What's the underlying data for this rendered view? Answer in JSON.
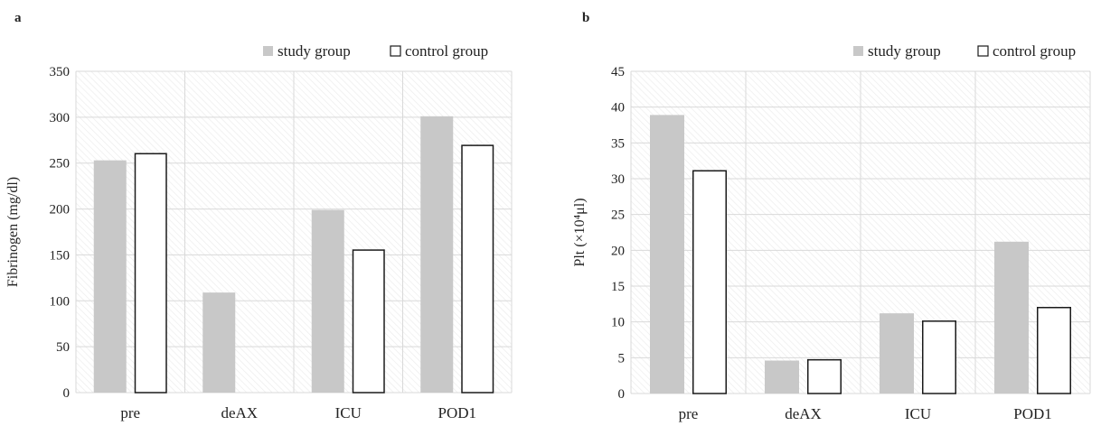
{
  "colors": {
    "study": "#c8c8c8",
    "control": "#ffffff",
    "control_stroke": "#1a1a1a",
    "grid": "#d9d9d9",
    "hatch": "#ececec"
  },
  "chart_data": [
    {
      "type": "bar",
      "panel_label": "a",
      "title": "",
      "xlabel": "",
      "ylabel": "Fibrinogen (mg/dl)",
      "categories": [
        "pre",
        "deAX",
        "ICU",
        "POD1"
      ],
      "series": [
        {
          "name": "study group",
          "values": [
            253,
            109,
            199,
            301
          ]
        },
        {
          "name": "control group",
          "values": [
            261,
            0,
            156,
            270
          ]
        }
      ],
      "ylim": [
        0,
        350
      ],
      "yticks": [
        0,
        50,
        100,
        150,
        200,
        250,
        300,
        350
      ],
      "grid": true,
      "legend": "top-right"
    },
    {
      "type": "bar",
      "panel_label": "b",
      "title": "",
      "xlabel": "",
      "ylabel": "Plt (×10⁴μl)",
      "categories": [
        "pre",
        "deAX",
        "ICU",
        "POD1"
      ],
      "series": [
        {
          "name": "study group",
          "values": [
            38.9,
            4.6,
            11.2,
            21.2
          ]
        },
        {
          "name": "control group",
          "values": [
            31.2,
            4.8,
            10.2,
            12.1
          ]
        }
      ],
      "ylim": [
        0,
        45
      ],
      "yticks": [
        0,
        5,
        10,
        15,
        20,
        25,
        30,
        35,
        40,
        45
      ],
      "grid": true,
      "legend": "top-right"
    }
  ]
}
